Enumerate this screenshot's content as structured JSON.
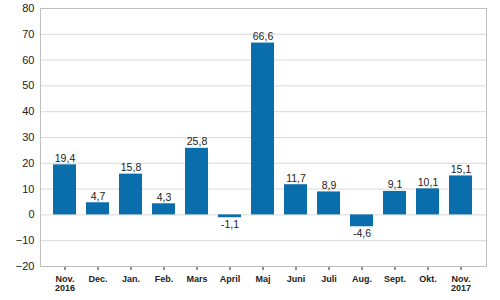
{
  "chart_data": {
    "type": "bar",
    "categories": [
      "Nov.\n2016",
      "Dec.",
      "Jan.",
      "Feb.",
      "Mars",
      "April",
      "Maj",
      "Juni",
      "Juli",
      "Aug.",
      "Sept.",
      "Okt.",
      "Nov.\n2017"
    ],
    "values": [
      19.4,
      4.7,
      15.8,
      4.3,
      25.8,
      -1.1,
      66.6,
      11.7,
      8.9,
      -4.6,
      9.1,
      10.1,
      15.1
    ],
    "value_labels": [
      "19,4",
      "4,7",
      "15,8",
      "4,3",
      "25,8",
      "-1,1",
      "66,6",
      "11,7",
      "8,9",
      "-4,6",
      "9,1",
      "10,1",
      "15,1"
    ],
    "data_labels": true,
    "color": "#0a6ead",
    "ylim": [
      -20,
      80
    ],
    "yticks": [
      -20,
      -10,
      0,
      10,
      20,
      30,
      40,
      50,
      60,
      70,
      80
    ],
    "grid": true
  }
}
